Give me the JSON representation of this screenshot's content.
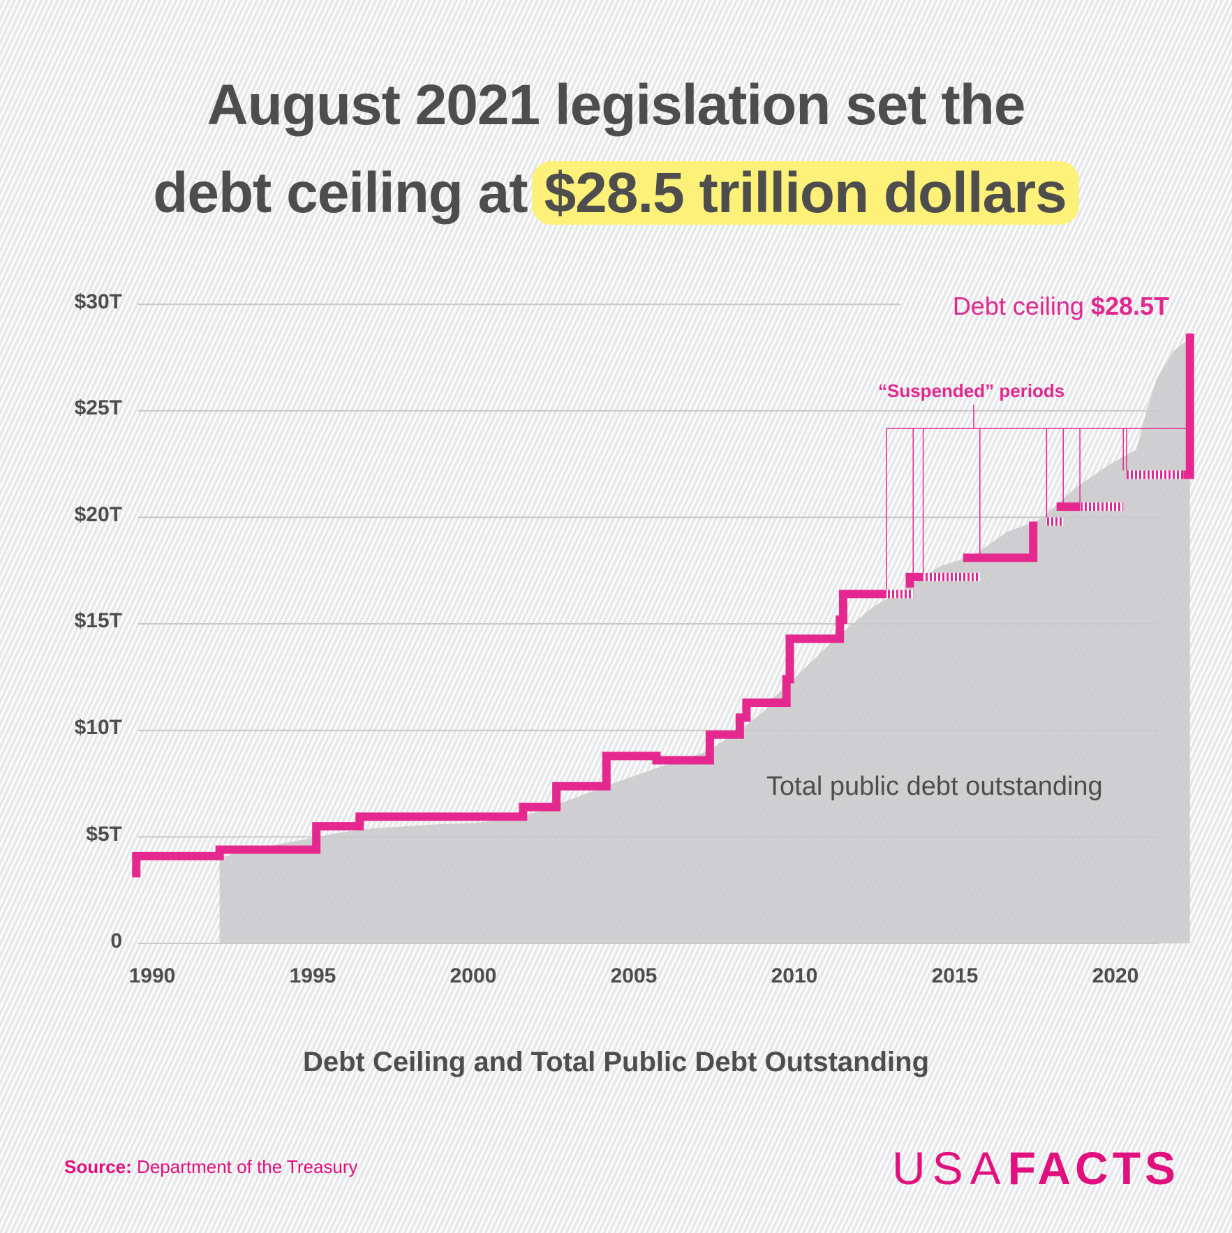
{
  "title": {
    "line1": "August 2021 legislation set the",
    "line2_prefix": "debt ceiling at",
    "line2_highlight": "$28.5 trillion dollars",
    "highlight_color": "#fef17a"
  },
  "annotations": {
    "ceiling_label_prefix": "Debt ceiling ",
    "ceiling_label_value": "$28.5T",
    "suspended_label": "“Suspended” periods",
    "area_label": "Total public debt outstanding"
  },
  "subtitle": "Debt Ceiling and Total Public Debt Outstanding",
  "source": {
    "label": "Source:",
    "text": "Department of the Treasury"
  },
  "logo": {
    "thin": "USA",
    "bold": "FACTS"
  },
  "colors": {
    "ceiling": "#e5288f",
    "debt_area": "#c9c9cb",
    "text": "#4d4d4d",
    "grid": "#c8c8c8"
  },
  "chart_data": {
    "type": "area",
    "title": "Debt Ceiling and Total Public Debt Outstanding",
    "xlabel": "",
    "ylabel": "",
    "x_ticks": [
      "1990",
      "1995",
      "2000",
      "2005",
      "2010",
      "2015",
      "2020"
    ],
    "y_ticks": [
      "0",
      "$5T",
      "$10T",
      "$15T",
      "$20T",
      "$25T",
      "$30T"
    ],
    "ylim": [
      0,
      30
    ],
    "xlim": [
      1989.9,
      2021.7
    ],
    "grid": true,
    "legend": "inline annotations",
    "series": [
      {
        "name": "Debt ceiling",
        "type": "step",
        "color": "#e5288f",
        "points": [
          [
            1989.9,
            3.1
          ],
          [
            1990.0,
            4.1
          ],
          [
            1992.4,
            4.1
          ],
          [
            1992.4,
            4.4
          ],
          [
            1995.3,
            4.4
          ],
          [
            1995.3,
            5.5
          ],
          [
            1996.6,
            5.5
          ],
          [
            1996.6,
            5.95
          ],
          [
            2001.5,
            5.95
          ],
          [
            2001.5,
            6.4
          ],
          [
            2002.5,
            6.4
          ],
          [
            2002.5,
            7.38
          ],
          [
            2004.0,
            7.38
          ],
          [
            2004.0,
            8.18
          ],
          [
            2004.0,
            8.8
          ],
          [
            2005.5,
            8.8
          ],
          [
            2005.5,
            8.6
          ],
          [
            2007.1,
            8.6
          ],
          [
            2007.1,
            9.8
          ],
          [
            2008.0,
            9.8
          ],
          [
            2008.0,
            10.6
          ],
          [
            2008.2,
            10.6
          ],
          [
            2008.2,
            11.3
          ],
          [
            2009.4,
            11.3
          ],
          [
            2009.4,
            12.1
          ],
          [
            2009.5,
            12.4
          ],
          [
            2010.1,
            14.3
          ],
          [
            2011.0,
            14.3
          ],
          [
            2011.0,
            14.7
          ],
          [
            2011.1,
            15.2
          ],
          [
            2012.0,
            16.4
          ],
          [
            2012.4,
            16.4
          ],
          [
            2013.1,
            16.7
          ],
          [
            2013.5,
            17.2
          ],
          [
            2014.7,
            17.2
          ],
          [
            2014.7,
            18.1
          ],
          [
            2015.4,
            18.1
          ],
          [
            2016.8,
            18.1
          ],
          [
            2016.8,
            19.8
          ],
          [
            2017.3,
            19.8
          ],
          [
            2017.5,
            20.5
          ],
          [
            2018.2,
            20.5
          ],
          [
            2018.6,
            20.5
          ],
          [
            2018.6,
            22.0
          ],
          [
            2019.1,
            22.0
          ],
          [
            2021.3,
            22.0
          ],
          [
            2021.5,
            22.0
          ],
          [
            2021.5,
            28.5
          ]
        ]
      },
      {
        "name": "Total public debt outstanding",
        "type": "area",
        "color": "#c9c9cb",
        "points": [
          [
            1992.4,
            4.0
          ],
          [
            1993.0,
            4.3
          ],
          [
            1994.0,
            4.6
          ],
          [
            1995.0,
            4.9
          ],
          [
            1996.0,
            5.2
          ],
          [
            1997.0,
            5.4
          ],
          [
            1998.0,
            5.5
          ],
          [
            1999.0,
            5.6
          ],
          [
            2000.0,
            5.65
          ],
          [
            2001.0,
            5.8
          ],
          [
            2002.0,
            6.2
          ],
          [
            2003.0,
            6.8
          ],
          [
            2004.0,
            7.4
          ],
          [
            2005.0,
            7.95
          ],
          [
            2006.0,
            8.5
          ],
          [
            2007.0,
            9.0
          ],
          [
            2008.0,
            10.0
          ],
          [
            2008.8,
            11.0
          ],
          [
            2009.0,
            11.5
          ],
          [
            2010.0,
            13.0
          ],
          [
            2011.0,
            14.5
          ],
          [
            2012.0,
            15.8
          ],
          [
            2013.0,
            16.7
          ],
          [
            2014.0,
            17.7
          ],
          [
            2015.0,
            18.2
          ],
          [
            2016.0,
            19.3
          ],
          [
            2017.0,
            19.9
          ],
          [
            2018.0,
            21.3
          ],
          [
            2019.0,
            22.4
          ],
          [
            2019.9,
            23.2
          ],
          [
            2020.2,
            25.0
          ],
          [
            2020.5,
            26.5
          ],
          [
            2021.0,
            27.8
          ],
          [
            2021.5,
            28.4
          ]
        ]
      }
    ],
    "suspended_periods": [
      [
        2012.4,
        2013.2
      ],
      [
        2013.5,
        2015.2
      ],
      [
        2017.2,
        2017.7
      ],
      [
        2018.2,
        2019.5
      ],
      [
        2019.6,
        2021.4
      ]
    ],
    "annotations": [
      "Debt ceiling $28.5T",
      "“Suspended” periods",
      "Total public debt outstanding"
    ]
  }
}
